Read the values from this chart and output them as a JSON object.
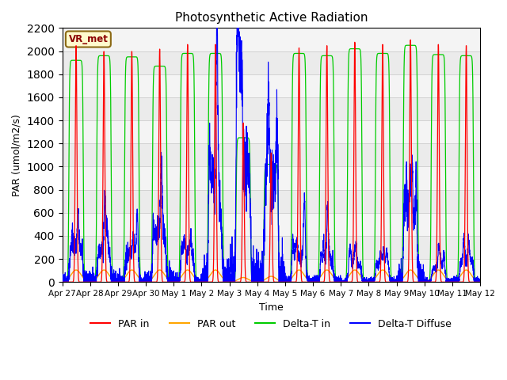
{
  "title": "Photosynthetic Active Radiation",
  "xlabel": "Time",
  "ylabel": "PAR (umol/m2/s)",
  "ylim": [
    0,
    2200
  ],
  "yticks": [
    0,
    200,
    400,
    600,
    800,
    1000,
    1200,
    1400,
    1600,
    1800,
    2000,
    2200
  ],
  "annotation_text": "VR_met",
  "annotation_box_color": "#FFFACD",
  "annotation_border_color": "#8B6914",
  "legend_labels": [
    "PAR in",
    "PAR out",
    "Delta-T in",
    "Delta-T Diffuse"
  ],
  "legend_colors": [
    "#FF0000",
    "#FFA500",
    "#00CC00",
    "#0000FF"
  ],
  "line_colors": {
    "par_in": "#FF0000",
    "par_out": "#FFA500",
    "delta_t_in": "#00CC00",
    "delta_t_diffuse": "#0000FF"
  },
  "background_color": "#EBEBEB",
  "n_days": 15,
  "tick_labels": [
    "Apr 27",
    "Apr 28",
    "Apr 29",
    "Apr 30",
    "May 1",
    "May 2",
    "May 3",
    "May 4",
    "May 5",
    "May 6",
    "May 7",
    "May 8",
    "May 9",
    "May 10",
    "May 11",
    "May 12"
  ]
}
